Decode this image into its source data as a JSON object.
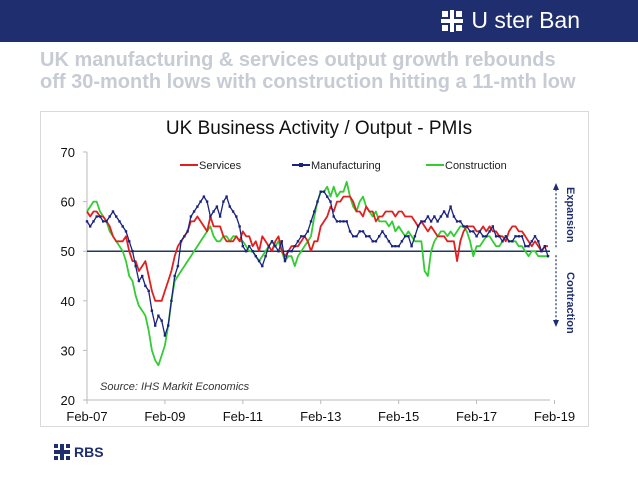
{
  "brand": {
    "name": "U ster Ban",
    "logo_icon": "ulster-bank-logo-icon"
  },
  "headline": {
    "line1": "UK manufacturing & services output growth rebounds",
    "line2": "off 30-month lows with construction hitting a 11-mth low"
  },
  "footer": {
    "logo_text": "RBS",
    "logo_icon": "rbs-logo-icon"
  },
  "chart_data": {
    "type": "line",
    "title": "UK Business Activity / Output - PMIs",
    "xlabel": "",
    "ylabel": "",
    "x_start": "Feb-07",
    "x_tick_labels": [
      "Feb-07",
      "Feb-09",
      "Feb-11",
      "Feb-13",
      "Feb-15",
      "Feb-17",
      "Feb-19"
    ],
    "xlim": [
      "2007-02",
      "2019-06"
    ],
    "ylim": [
      20,
      70
    ],
    "y_ticks": [
      20,
      30,
      40,
      50,
      60,
      70
    ],
    "reference_line": 50,
    "legend_position": "top",
    "source_note": "Source: IHS Markit Economics",
    "annotations": {
      "upper": "Expansion",
      "lower": "Contraction"
    },
    "colors": {
      "Services": "#e02020",
      "Manufacturing": "#1a237e",
      "Construction": "#33cc33",
      "reference": "#1f3a5f",
      "annotation": "#1f2e6e"
    },
    "series": [
      {
        "name": "Services",
        "values": [
          58,
          57,
          58,
          58,
          57,
          57,
          56,
          55,
          53,
          52,
          52,
          52,
          53,
          50,
          48,
          48,
          46,
          47,
          48,
          45,
          42,
          40,
          40,
          40,
          42,
          44,
          46,
          49,
          51,
          52,
          53,
          54,
          56,
          56,
          57,
          56,
          55,
          54,
          57,
          55,
          55,
          55,
          53,
          52,
          52,
          52,
          53,
          52,
          54,
          53,
          53,
          51,
          52,
          50,
          53,
          52,
          51,
          50,
          52,
          53,
          50,
          49,
          50,
          51,
          51,
          51,
          52,
          53,
          52,
          50,
          52,
          52,
          55,
          56,
          57,
          59,
          58,
          60,
          60,
          61,
          61,
          61,
          60,
          58,
          58,
          57,
          59,
          58,
          58,
          56,
          57,
          57,
          58,
          58,
          58,
          57,
          58,
          58,
          57,
          57,
          57,
          56,
          55,
          56,
          55,
          54,
          55,
          54,
          53,
          53,
          53,
          52,
          52,
          52,
          48,
          52,
          54,
          55,
          55,
          55,
          54,
          54,
          55,
          54,
          55,
          54,
          54,
          53,
          53,
          52,
          54,
          55,
          55,
          54,
          54,
          53,
          52,
          51,
          52,
          51,
          50,
          51,
          51
        ],
        "label_color": "#e02020"
      },
      {
        "name": "Manufacturing",
        "values": [
          56,
          55,
          56,
          57,
          57,
          56,
          56,
          57,
          58,
          57,
          56,
          55,
          54,
          52,
          50,
          47,
          44,
          45,
          43,
          42,
          38,
          35,
          37,
          36,
          33,
          35,
          40,
          45,
          47,
          52,
          53,
          54,
          57,
          58,
          59,
          60,
          61,
          60,
          57,
          58,
          59,
          57,
          60,
          61,
          59,
          58,
          57,
          55,
          51,
          50,
          51,
          50,
          49,
          48,
          47,
          49,
          51,
          52,
          51,
          50,
          52,
          48,
          50,
          50,
          51,
          52,
          53,
          53,
          54,
          56,
          58,
          60,
          62,
          62,
          61,
          60,
          57,
          56,
          56,
          56,
          56,
          54,
          53,
          53,
          54,
          54,
          53,
          53,
          52,
          52,
          53,
          54,
          53,
          52,
          51,
          51,
          51,
          52,
          53,
          53,
          51,
          53,
          55,
          56,
          56,
          57,
          56,
          57,
          56,
          57,
          58,
          57,
          59,
          57,
          56,
          56,
          55,
          55,
          54,
          54,
          53,
          54,
          53,
          53,
          54,
          55,
          53,
          53,
          52,
          53,
          52,
          52,
          53,
          53,
          53,
          51,
          51,
          52,
          53,
          52,
          50,
          51,
          49
        ],
        "label_color": "#1a237e"
      },
      {
        "name": "Construction",
        "values": [
          58,
          59,
          60,
          60,
          58,
          57,
          56,
          54,
          53,
          52,
          51,
          50,
          48,
          45,
          44,
          41,
          39,
          38,
          37,
          34,
          30,
          28,
          27,
          29,
          31,
          35,
          40,
          44,
          45,
          46,
          47,
          48,
          49,
          50,
          51,
          52,
          53,
          54,
          55,
          53,
          52,
          52,
          53,
          53,
          52,
          53,
          53,
          52,
          52,
          51,
          50,
          50,
          49,
          48,
          49,
          50,
          51,
          52,
          51,
          52,
          50,
          48,
          49,
          49,
          47,
          49,
          50,
          51,
          52,
          53,
          57,
          60,
          62,
          62,
          63,
          61,
          63,
          61,
          62,
          62,
          64,
          61,
          59,
          58,
          60,
          61,
          59,
          58,
          57,
          58,
          56,
          56,
          56,
          55,
          56,
          54,
          55,
          54,
          53,
          54,
          53,
          52,
          52,
          52,
          46,
          45,
          50,
          52,
          53,
          54,
          54,
          53,
          54,
          53,
          54,
          55,
          55,
          54,
          52,
          49,
          51,
          51,
          52,
          53,
          53,
          52,
          51,
          51,
          52,
          53,
          52,
          52,
          52,
          51,
          51,
          50,
          49,
          50,
          50,
          49,
          49,
          49,
          49
        ],
        "label_color": "#33cc33"
      }
    ]
  }
}
